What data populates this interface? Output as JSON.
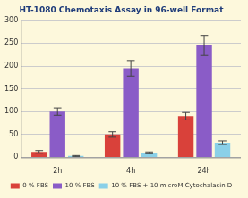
{
  "chart_data": {
    "type": "bar",
    "title": "HT-1080 Chemotaxis Assay in 96-well Format",
    "categories": [
      "2h",
      "4h",
      "24h"
    ],
    "series": [
      {
        "name": "0 % FBS",
        "color": "#d9413a",
        "values": [
          12,
          50,
          90
        ],
        "errors": [
          3,
          6,
          8
        ]
      },
      {
        "name": "10 % FBS",
        "color": "#8a5cc7",
        "values": [
          100,
          195,
          245
        ],
        "errors": [
          8,
          17,
          22
        ]
      },
      {
        "name": "10 % FBS + 10 microM Cytochalasin D",
        "color": "#8ad0e8",
        "values": [
          3,
          10,
          32
        ],
        "errors": [
          1,
          2,
          4
        ]
      }
    ],
    "ylim": [
      0,
      300
    ],
    "yticks": [
      0,
      50,
      100,
      150,
      200,
      250,
      300
    ],
    "grid": true,
    "legend": "bottom"
  }
}
